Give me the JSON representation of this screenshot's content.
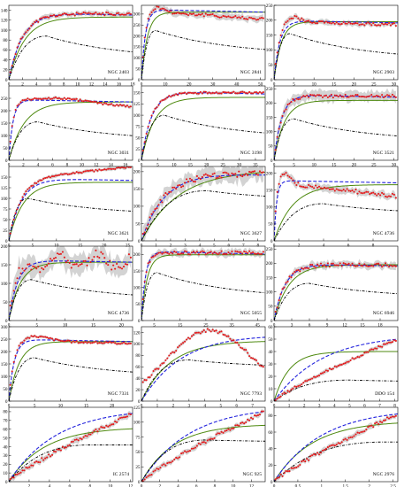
{
  "colors": {
    "data_points": "#e41a1c",
    "error_band": "#c8c8c8",
    "nfw_fit": "#2222dd",
    "mond_fit": "#4f8a10",
    "baryonic": "#000000",
    "frame": "#000000",
    "background": "#ffffff"
  },
  "chart_data": [
    {
      "type": "line",
      "name": "NGC 2403",
      "xlim": [
        0,
        18
      ],
      "xticks": [
        0,
        2,
        4,
        6,
        8,
        10,
        12,
        14,
        16,
        18
      ],
      "ylim": [
        0,
        150
      ],
      "yticks": [
        0,
        20,
        40,
        60,
        80,
        100,
        120,
        140
      ],
      "rc": "flat",
      "vmax": 133,
      "rs": 1.9,
      "bar_peak": 88,
      "bar_rpk": 5.5,
      "bar_end": 0.47,
      "mond_scale": 0.95,
      "mond_rs": 2.3,
      "noise": 3,
      "band": 5
    },
    {
      "type": "line",
      "name": "NGC 2841",
      "xlim": [
        0,
        52
      ],
      "xticks": [
        0,
        10,
        20,
        30,
        40,
        50
      ],
      "ylim": [
        0,
        340
      ],
      "yticks": [
        0,
        50,
        100,
        150,
        200,
        250,
        300
      ],
      "rc": "peak",
      "vmax": 315,
      "rs": 1.6,
      "peak_r": 6,
      "peak_amp": 25,
      "decline": 0.12,
      "bar_peak": 225,
      "bar_rpk": 6,
      "bar_end": 0.5,
      "mond_scale": 0.98,
      "mond_rs": 2.5,
      "noise": 7,
      "band": 14
    },
    {
      "type": "line",
      "name": "NGC 2903",
      "xlim": [
        0,
        31
      ],
      "xticks": [
        0,
        5,
        10,
        15,
        20,
        25,
        30
      ],
      "ylim": [
        0,
        250
      ],
      "yticks": [
        0,
        50,
        100,
        150,
        200,
        250
      ],
      "rc": "peak",
      "vmax": 195,
      "rs": 1.4,
      "peak_r": 4,
      "peak_amp": 25,
      "decline": 0.05,
      "bar_peak": 155,
      "bar_rpk": 4,
      "bar_end": 0.42,
      "mond_scale": 1.0,
      "mond_rs": 1.8,
      "noise": 5,
      "band": 8
    },
    {
      "type": "line",
      "name": "NGC 3031",
      "xlim": [
        0,
        17
      ],
      "xticks": [
        0,
        2,
        4,
        6,
        8,
        10,
        12,
        14,
        16
      ],
      "ylim": [
        0,
        300
      ],
      "yticks": [
        0,
        50,
        100,
        150,
        200,
        250
      ],
      "rc": "peak",
      "vmax": 240,
      "rs": 0.55,
      "peak_r": 7,
      "peak_amp": 20,
      "decline": 0.1,
      "bar_peak": 155,
      "bar_rpk": 4,
      "bar_end": 0.5,
      "mond_scale": 0.98,
      "mond_rs": 2.1,
      "noise": 4,
      "band": 6
    },
    {
      "type": "line",
      "name": "NGC 3198",
      "xlim": [
        0,
        38
      ],
      "xticks": [
        0,
        5,
        10,
        15,
        20,
        25,
        30,
        35
      ],
      "ylim": [
        0,
        165
      ],
      "yticks": [
        0,
        25,
        50,
        75,
        100,
        125,
        150
      ],
      "rc": "flat",
      "vmax": 150,
      "rs": 3,
      "bar_peak": 100,
      "bar_rpk": 7,
      "bar_end": 0.47,
      "mond_scale": 0.93,
      "mond_rs": 4,
      "noise": 2,
      "band": 3
    },
    {
      "type": "line",
      "name": "NGC 3521",
      "xlim": [
        0,
        31
      ],
      "xticks": [
        0,
        5,
        10,
        15,
        20,
        25,
        30
      ],
      "ylim": [
        0,
        260
      ],
      "yticks": [
        0,
        50,
        100,
        150,
        200,
        250
      ],
      "rc": "flat",
      "vmax": 225,
      "rs": 1.8,
      "bar_peak": 145,
      "bar_rpk": 5,
      "bar_end": 0.45,
      "mond_scale": 0.93,
      "mond_rs": 2.6,
      "noise": 6,
      "band": 18
    },
    {
      "type": "line",
      "name": "NGC 3621",
      "xlim": [
        0,
        26
      ],
      "xticks": [
        0,
        5,
        10,
        15,
        20,
        25
      ],
      "ylim": [
        0,
        175
      ],
      "yticks": [
        0,
        25,
        50,
        75,
        100,
        125,
        150
      ],
      "rc": "rise",
      "vmax": 145,
      "rs": 2.5,
      "rise": 0.2,
      "bar_peak": 100,
      "bar_rpk": 4,
      "bar_end": 0.6,
      "mond_scale": 0.95,
      "mond_rs": 3,
      "noise": 2,
      "band": 4
    },
    {
      "type": "line",
      "name": "NGC 3627",
      "xlim": [
        0,
        8.5
      ],
      "xticks": [
        0,
        1,
        2,
        3,
        4,
        5,
        6,
        7,
        8
      ],
      "ylim": [
        0,
        215
      ],
      "yticks": [
        0,
        50,
        100,
        150,
        200
      ],
      "rc": "flat",
      "vmax": 195,
      "rs": 1.5,
      "bar_peak": 145,
      "bar_rpk": 4.5,
      "bar_end": 0.8,
      "mond_scale": 1.05,
      "mond_rs": 2.5,
      "noise": 8,
      "band": 22
    },
    {
      "type": "line",
      "name": "NGC 4736",
      "xlim": [
        0,
        10
      ],
      "xticks": [
        0,
        2,
        4,
        6,
        8
      ],
      "ylim": [
        0,
        220
      ],
      "yticks": [
        0,
        50,
        100,
        150,
        200
      ],
      "rc": "peak",
      "vmax": 175,
      "rs": 0.2,
      "peak_r": 0.8,
      "peak_amp": 30,
      "decline": 0.25,
      "bar_peak": 110,
      "bar_rpk": 4,
      "bar_end": 0.7,
      "mond_scale": 0.95,
      "mond_rs": 1.5,
      "noise": 6,
      "band": 10
    },
    {
      "type": "line",
      "name": "NGC 4736",
      "xlim": [
        0,
        22
      ],
      "xticks": [
        0,
        5,
        10,
        15,
        20
      ],
      "ylim": [
        0,
        200
      ],
      "yticks": [
        0,
        50,
        100,
        150,
        200
      ],
      "rc": "wiggle",
      "vmax": 160,
      "rs": 1.5,
      "bar_peak": 110,
      "bar_rpk": 4,
      "bar_end": 0.5,
      "mond_scale": 0.98,
      "mond_rs": 2,
      "noise": 12,
      "band": 25
    },
    {
      "type": "line",
      "name": "NGC 5055",
      "xlim": [
        0,
        48
      ],
      "xticks": [
        5,
        15,
        25,
        35,
        45
      ],
      "ylim": [
        0,
        225
      ],
      "yticks": [
        0,
        50,
        100,
        150,
        200
      ],
      "rc": "flat",
      "vmax": 205,
      "rs": 1.5,
      "bar_peak": 145,
      "bar_rpk": 6,
      "bar_end": 0.45,
      "mond_scale": 0.97,
      "mond_rs": 2.2,
      "noise": 5,
      "band": 10
    },
    {
      "type": "line",
      "name": "NGC 6946",
      "xlim": [
        0,
        21
      ],
      "xticks": [
        0,
        3,
        6,
        9,
        12,
        15,
        18
      ],
      "ylim": [
        0,
        260
      ],
      "yticks": [
        0,
        50,
        100,
        150,
        200,
        250
      ],
      "rc": "flat",
      "vmax": 195,
      "rs": 1.8,
      "bar_peak": 130,
      "bar_rpk": 6,
      "bar_end": 0.6,
      "mond_scale": 1.0,
      "mond_rs": 2.5,
      "noise": 7,
      "band": 12
    },
    {
      "type": "line",
      "name": "NGC 7331",
      "xlim": [
        0,
        24
      ],
      "xticks": [
        0,
        5,
        10,
        15,
        20
      ],
      "ylim": [
        0,
        300
      ],
      "yticks": [
        0,
        50,
        100,
        150,
        200,
        250,
        300
      ],
      "rc": "peak",
      "vmax": 245,
      "rs": 1,
      "peak_r": 5,
      "peak_amp": 20,
      "decline": 0.05,
      "bar_peak": 175,
      "bar_rpk": 5,
      "bar_end": 0.55,
      "mond_scale": 0.98,
      "mond_rs": 2,
      "noise": 4,
      "band": 6
    },
    {
      "type": "line",
      "name": "NGC 7793",
      "xlim": [
        0,
        7.8
      ],
      "xticks": [
        0,
        1,
        2,
        3,
        4,
        5,
        6,
        7
      ],
      "ylim": [
        0,
        130
      ],
      "yticks": [
        0,
        20,
        40,
        60,
        80,
        100,
        120
      ],
      "rc": "hump",
      "vmax": 120,
      "rs": 2.5,
      "peak_r": 4.3,
      "bar_peak": 72,
      "bar_rpk": 3,
      "bar_end": 0.8,
      "mond_scale": 0.88,
      "mond_rs": 1.8,
      "noise": 3,
      "band": 3
    },
    {
      "type": "line",
      "name": "DDO 154",
      "xlim": [
        0,
        8.2
      ],
      "xticks": [
        0,
        1,
        2,
        3,
        4,
        5,
        6,
        7,
        8
      ],
      "ylim": [
        0,
        60
      ],
      "yticks": [
        0,
        10,
        20,
        30,
        40,
        50,
        60
      ],
      "rc": "linrise",
      "vmax": 50,
      "rs": 1.5,
      "bar_peak": 17,
      "bar_rpk": 5,
      "bar_end": 0.9,
      "mond_scale": 0.8,
      "mond_rs": 1,
      "noise": 1,
      "band": 1.5
    },
    {
      "type": "line",
      "name": "IC 2574",
      "xlim": [
        0,
        12.2
      ],
      "xticks": [
        2,
        4,
        6,
        8,
        10,
        12
      ],
      "ylim": [
        0,
        85
      ],
      "yticks": [
        0,
        10,
        20,
        30,
        40,
        50,
        60,
        70,
        80
      ],
      "rc": "linrise",
      "vmax": 78,
      "rs": 1.5,
      "bar_peak": 42,
      "bar_rpk": 8,
      "bar_end": 1.0,
      "mond_scale": 0.8,
      "mond_rs": 3.5,
      "noise": 2,
      "band": 3
    },
    {
      "type": "line",
      "name": "NGC 925",
      "xlim": [
        0,
        13.5
      ],
      "xticks": [
        0,
        2,
        4,
        6,
        8,
        10,
        12
      ],
      "ylim": [
        0,
        125
      ],
      "yticks": [
        0,
        25,
        50,
        75,
        100,
        125
      ],
      "rc": "linrise",
      "vmax": 118,
      "rs": 1.5,
      "bar_peak": 70,
      "bar_rpk": 7,
      "bar_end": 0.95,
      "mond_scale": 0.82,
      "mond_rs": 3.5,
      "noise": 3,
      "band": 4
    },
    {
      "type": "line",
      "name": "NGC 2976",
      "xlim": [
        0,
        2.6
      ],
      "xticks": [
        0,
        0.5,
        1,
        1.5,
        2,
        2.5
      ],
      "ylim": [
        0,
        90
      ],
      "yticks": [
        0,
        20,
        40,
        60,
        80
      ],
      "rc": "linrise",
      "vmax": 82,
      "rs": 0.4,
      "bar_peak": 48,
      "bar_rpk": 2.3,
      "bar_end": 1.0,
      "mond_scale": 0.9,
      "mond_rs": 0.8,
      "noise": 2,
      "band": 3
    }
  ]
}
